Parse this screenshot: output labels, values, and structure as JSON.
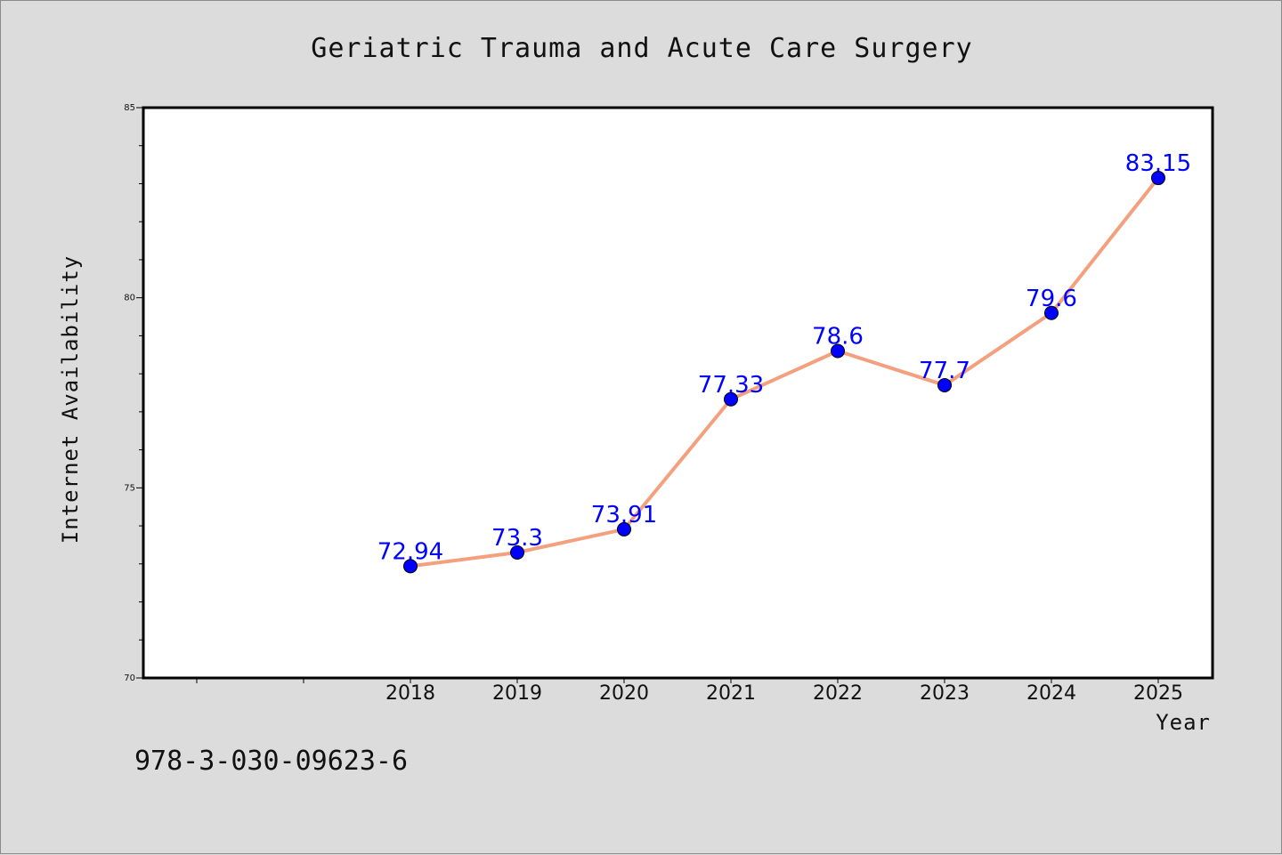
{
  "chart_data": {
    "type": "line",
    "title": "Geriatric Trauma and Acute Care Surgery",
    "xlabel": "Year",
    "ylabel": "Internet Availability",
    "categories": [
      "2018",
      "2019",
      "2020",
      "2021",
      "2022",
      "2023",
      "2024",
      "2025"
    ],
    "series": [
      {
        "values": [
          72.94,
          73.3,
          73.91,
          77.33,
          78.6,
          77.7,
          79.6,
          83.15
        ]
      }
    ],
    "data_labels": [
      "72.94",
      "73.3",
      "73.91",
      "77.33",
      "78.6",
      "77.7",
      "79.6",
      "83.15"
    ],
    "ylim": [
      70,
      85
    ],
    "yticks": [
      "70",
      "75",
      "80",
      "85"
    ],
    "grid": false,
    "legend": "none",
    "colors": {
      "line": "#f4a07e",
      "marker": "#0000ff",
      "data_label": "#0000ff",
      "plot_background": "#ffffff",
      "figure_background": "#dcdcdc"
    }
  },
  "footnote": "978-3-030-09623-6"
}
